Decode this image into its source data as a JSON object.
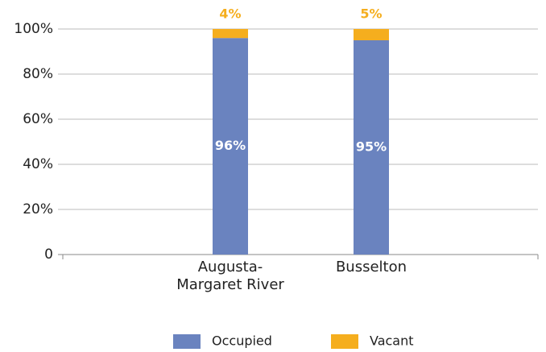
{
  "chart_data": {
    "type": "stacked_bar",
    "categories": [
      "Augusta-Margaret River",
      "Busselton"
    ],
    "series": [
      {
        "name": "Occupied",
        "color": "#6a83bf",
        "values": [
          96,
          95
        ],
        "value_labels": [
          "96%",
          "95%"
        ]
      },
      {
        "name": "Vacant",
        "color": "#f5ae1e",
        "values": [
          4,
          5
        ],
        "value_labels": [
          "4%",
          "5%"
        ]
      }
    ],
    "ylim": [
      0,
      100
    ],
    "yticks": [
      0,
      {
        "value": 20,
        "label": "20%"
      },
      {
        "value": 40,
        "label": "40%"
      },
      {
        "value": 60,
        "label": "60%"
      },
      {
        "value": 80,
        "label": "80%"
      },
      {
        "value": 100,
        "label": "100%"
      }
    ],
    "grid": true,
    "legend": "bottom"
  }
}
